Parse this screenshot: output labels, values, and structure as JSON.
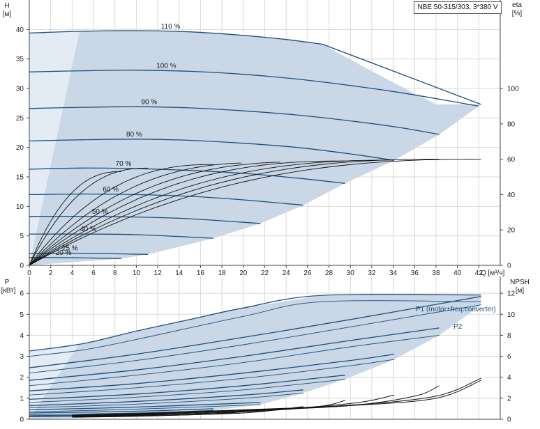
{
  "chart_data": {
    "title": "NBE 50-315/303, 3*380 V",
    "top": {
      "type": "line",
      "y_left_label": "H\n[м]",
      "y_right_label": "eta\n[%]",
      "x_label": "Q [м³/ч]",
      "x_ticks": [
        0,
        2,
        4,
        6,
        8,
        10,
        12,
        14,
        16,
        18,
        20,
        22,
        24,
        26,
        28,
        30,
        32,
        34,
        36,
        38,
        40,
        42
      ],
      "y_ticks": [
        0,
        5,
        10,
        15,
        20,
        25,
        30,
        35,
        40
      ],
      "eta_ticks": [
        0,
        20,
        40,
        60,
        80,
        100
      ],
      "xlim": [
        0,
        44
      ],
      "ylim": [
        0,
        45
      ],
      "eta_lim": [
        0,
        150
      ],
      "grid": true,
      "curves": [
        {
          "label": "110 %",
          "x": [
            0,
            5,
            10,
            15,
            20,
            24,
            27.4
          ],
          "y": [
            39.4,
            39.7,
            39.8,
            39.6,
            39.0,
            38.3,
            37.5
          ]
        },
        {
          "label": "100 %",
          "x": [
            0,
            5,
            10,
            15,
            20,
            25,
            30,
            35,
            42
          ],
          "y": [
            32.8,
            33.0,
            33.1,
            32.9,
            32.4,
            31.6,
            30.5,
            29.2,
            27.0
          ]
        },
        {
          "label": "90 %",
          "x": [
            0,
            5,
            10,
            15,
            20,
            25,
            30,
            34.5,
            38.3
          ],
          "y": [
            26.6,
            26.8,
            26.9,
            26.7,
            26.2,
            25.5,
            24.5,
            23.4,
            22.2
          ]
        },
        {
          "label": "80 %",
          "x": [
            0,
            5,
            10,
            15,
            20,
            25,
            30,
            34.1
          ],
          "y": [
            21.1,
            21.3,
            21.4,
            21.2,
            20.7,
            20.0,
            18.9,
            17.8
          ]
        },
        {
          "label": "70 %",
          "x": [
            0,
            5,
            10,
            15,
            20,
            25,
            29.5
          ],
          "y": [
            16.3,
            16.5,
            16.4,
            16.1,
            15.6,
            14.8,
            13.9
          ]
        },
        {
          "label": "60 %",
          "x": [
            0,
            5,
            10,
            15,
            20,
            25.6
          ],
          "y": [
            12.0,
            12.1,
            12.0,
            11.7,
            11.1,
            10.2
          ]
        },
        {
          "label": "50 %",
          "x": [
            0,
            5,
            10,
            15,
            21.6
          ],
          "y": [
            8.3,
            8.3,
            8.2,
            7.9,
            7.1
          ]
        },
        {
          "label": "40 %",
          "x": [
            0,
            5,
            10,
            17.2
          ],
          "y": [
            5.3,
            5.3,
            5.2,
            4.6
          ]
        },
        {
          "label": "25 %",
          "x": [
            0,
            5,
            11.1
          ],
          "y": [
            2.05,
            2.05,
            1.85
          ]
        },
        {
          "label": "20 %",
          "x": [
            0,
            4,
            8.6
          ],
          "y": [
            1.32,
            1.3,
            1.15
          ]
        }
      ],
      "envelope": {
        "x": [
          0,
          4.7,
          10,
          15,
          20,
          24,
          27.4,
          30,
          34,
          38,
          42.2,
          38.3,
          34.1,
          29.5,
          25.6,
          21.6,
          17.2,
          11.1,
          8.6,
          0
        ],
        "y": [
          39.4,
          39.7,
          39.8,
          39.6,
          39.0,
          38.3,
          37.5,
          34.9,
          31.0,
          27.3,
          27.3,
          22.2,
          17.8,
          13.9,
          10.2,
          7.1,
          4.6,
          1.85,
          1.15,
          0
        ]
      },
      "eta_curves": [
        {
          "qmax": 42.2,
          "etamax": 60
        },
        {
          "qmax": 38.3,
          "etamax": 60
        },
        {
          "qmax": 34.1,
          "etamax": 59.5
        },
        {
          "qmax": 29.5,
          "etamax": 59
        },
        {
          "qmax": 25.6,
          "etamax": 58.5
        },
        {
          "qmax": 21.6,
          "etamax": 58
        },
        {
          "qmax": 17.2,
          "etamax": 57
        },
        {
          "qmax": 11.1,
          "etamax": 55
        },
        {
          "qmax": 8.6,
          "etamax": 53
        }
      ]
    },
    "bottom": {
      "type": "line",
      "y_left_label": "P\n[кВт]",
      "y_right_label": "NPSH\n[м]",
      "y_ticks": [
        0,
        1,
        2,
        3,
        4,
        5,
        6
      ],
      "npsh_ticks": [
        0,
        2,
        4,
        6,
        8,
        10,
        12
      ],
      "ylim": [
        0,
        6.8
      ],
      "npsh_lim": [
        0,
        13.6
      ],
      "grid": true,
      "labels": {
        "p1": "P1 (motor+freq.converter)",
        "p2": "P2"
      },
      "p1_curves": [
        {
          "x": [
            0,
            5,
            10,
            15,
            20,
            27.4,
            42.2
          ],
          "y": [
            3.25,
            3.6,
            4.2,
            4.75,
            5.3,
            5.9,
            5.92
          ]
        },
        {
          "x": [
            0,
            10,
            20,
            30,
            42.2
          ],
          "y": [
            2.45,
            3.1,
            3.9,
            4.75,
            5.85
          ]
        },
        {
          "x": [
            0,
            10,
            20,
            30,
            38.3
          ],
          "y": [
            1.85,
            2.35,
            3.0,
            3.75,
            4.35
          ]
        },
        {
          "x": [
            0,
            10,
            20,
            30,
            34.1
          ],
          "y": [
            1.35,
            1.7,
            2.2,
            2.8,
            3.1
          ]
        },
        {
          "x": [
            0,
            10,
            20,
            29.5
          ],
          "y": [
            0.95,
            1.2,
            1.6,
            2.1
          ]
        },
        {
          "x": [
            0,
            10,
            20,
            25.6
          ],
          "y": [
            0.65,
            0.85,
            1.15,
            1.4
          ]
        },
        {
          "x": [
            0,
            10,
            21.6
          ],
          "y": [
            0.45,
            0.58,
            0.8
          ]
        },
        {
          "x": [
            0,
            10,
            17.2
          ],
          "y": [
            0.3,
            0.38,
            0.5
          ]
        },
        {
          "x": [
            0,
            11.1
          ],
          "y": [
            0.17,
            0.22
          ]
        },
        {
          "x": [
            0,
            8.6
          ],
          "y": [
            0.12,
            0.15
          ]
        }
      ],
      "p2_curves": [
        {
          "x": [
            0,
            5,
            10,
            20,
            27.4,
            42.2
          ],
          "y": [
            3.0,
            3.3,
            3.8,
            4.9,
            5.6,
            5.6
          ]
        },
        {
          "x": [
            0,
            10,
            20,
            30,
            42.2
          ],
          "y": [
            2.2,
            2.8,
            3.55,
            4.4,
            5.45
          ]
        },
        {
          "x": [
            0,
            10,
            20,
            30,
            38.3
          ],
          "y": [
            1.6,
            2.1,
            2.7,
            3.45,
            4.0
          ]
        },
        {
          "x": [
            0,
            10,
            20,
            30,
            34.1
          ],
          "y": [
            1.15,
            1.5,
            1.95,
            2.55,
            2.85
          ]
        },
        {
          "x": [
            0,
            10,
            20,
            29.5
          ],
          "y": [
            0.8,
            1.05,
            1.4,
            1.9
          ]
        },
        {
          "x": [
            0,
            10,
            20,
            25.6
          ],
          "y": [
            0.55,
            0.72,
            1.0,
            1.25
          ]
        },
        {
          "x": [
            0,
            10,
            21.6
          ],
          "y": [
            0.35,
            0.48,
            0.7
          ]
        },
        {
          "x": [
            0,
            10,
            17.2
          ],
          "y": [
            0.22,
            0.3,
            0.42
          ]
        }
      ],
      "npsh_curves": [
        {
          "x": [
            4,
            10,
            20,
            30,
            38,
            42.2
          ],
          "y": [
            0.4,
            0.55,
            0.9,
            1.35,
            2.2,
            3.9
          ]
        },
        {
          "x": [
            4,
            10,
            20,
            30,
            38,
            42.2
          ],
          "y": [
            0.35,
            0.5,
            0.85,
            1.3,
            2.0,
            3.7
          ]
        },
        {
          "x": [
            4,
            10,
            20,
            30,
            36,
            38.3
          ],
          "y": [
            0.3,
            0.45,
            0.8,
            1.3,
            2.2,
            3.2
          ]
        },
        {
          "x": [
            4,
            10,
            20,
            30,
            34.1
          ],
          "y": [
            0.3,
            0.4,
            0.75,
            1.5,
            2.3
          ]
        },
        {
          "x": [
            4,
            10,
            20,
            27,
            29.5
          ],
          "y": [
            0.25,
            0.35,
            0.7,
            1.2,
            1.8
          ]
        },
        {
          "x": [
            4,
            10,
            20,
            25.6
          ],
          "y": [
            0.22,
            0.3,
            0.6,
            1.2
          ]
        },
        {
          "x": [
            4,
            10,
            18,
            21.6
          ],
          "y": [
            0.2,
            0.28,
            0.55,
            0.9
          ]
        }
      ]
    }
  },
  "colors": {
    "curve": "#1f4e79",
    "fill": "#c9d7e6",
    "fill_light": "#e3ebf4",
    "grid": "#d8d8d8",
    "axis": "#444444",
    "eta": "#111111"
  }
}
